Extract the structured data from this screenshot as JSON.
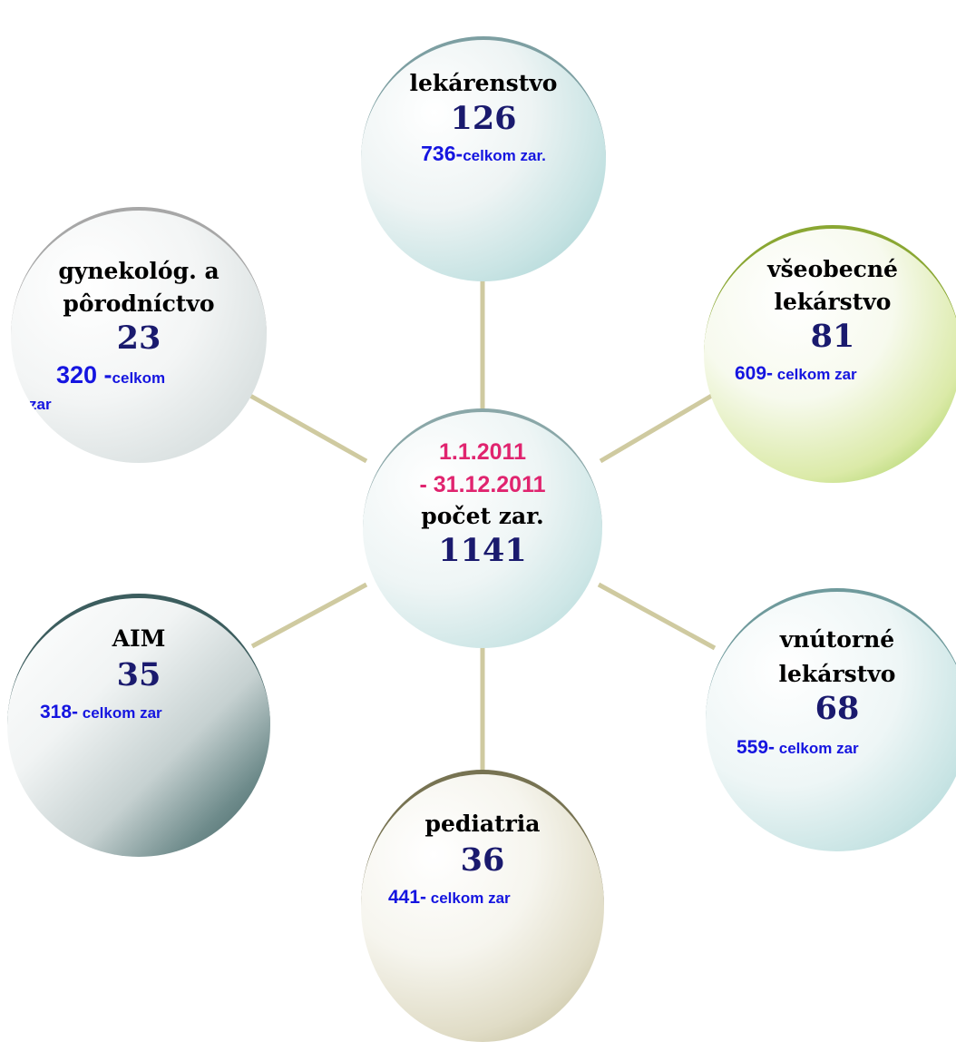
{
  "diagram": {
    "center": {
      "date_line1": "1.1.2011",
      "date_line2": "- 31.12.2011",
      "label": "počet zar.",
      "total": "1141"
    },
    "nodes": [
      {
        "id": "top",
        "label_lines": [
          "lekárenstvo"
        ],
        "count": "126",
        "total_num": "736-",
        "total_text": "celkom zar."
      },
      {
        "id": "left",
        "label_lines": [
          "gynekológ.  a",
          "pôrodníctvo"
        ],
        "count": "23",
        "total_num": "320 -",
        "total_text": "celkom",
        "total_text_wrap": "zar"
      },
      {
        "id": "right",
        "label_lines": [
          "všeobecné",
          "lekárstvo"
        ],
        "count": "81",
        "total_num": "609-",
        "total_text": " celkom zar"
      },
      {
        "id": "aim",
        "label_lines": [
          "AIM"
        ],
        "count": "35",
        "total_num": "318-",
        "total_text": " celkom zar"
      },
      {
        "id": "inner",
        "label_lines": [
          "vnútorné",
          "lekárstvo"
        ],
        "count": "68",
        "total_num": "559-",
        "total_text": " celkom zar"
      },
      {
        "id": "ped",
        "label_lines": [
          "pediatria"
        ],
        "count": "36",
        "total_num": "441-",
        "total_text": " celkom zar"
      }
    ],
    "colors": {
      "connector": "#cfcaa0",
      "date_text": "#e0246f",
      "count_text": "#1a1a6e",
      "total_text": "#1515e0"
    }
  }
}
